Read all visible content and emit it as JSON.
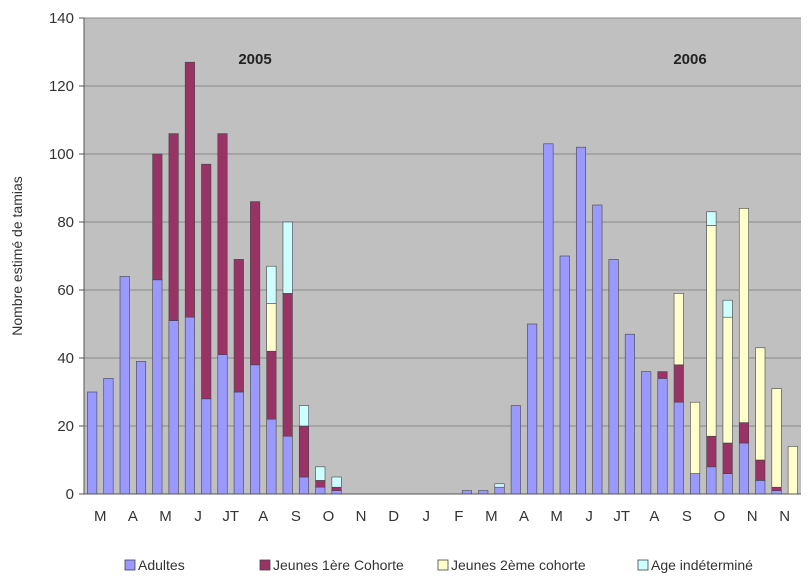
{
  "chart_data": {
    "type": "bar",
    "stacked": true,
    "ylabel": "Nombre estimé de tamias",
    "ylim": [
      0,
      140
    ],
    "yticks": [
      0,
      20,
      40,
      60,
      80,
      100,
      120,
      140
    ],
    "grid": true,
    "legend_position": "bottom",
    "plot_background": "#c0c0c0",
    "annotations": [
      "2005",
      "2006"
    ],
    "x_group_labels": [
      "M",
      "A",
      "M",
      "J",
      "JT",
      "A",
      "S",
      "O",
      "N",
      "D",
      "J",
      "F",
      "M",
      "A",
      "M",
      "J",
      "JT",
      "A",
      "S",
      "O",
      "N",
      "N"
    ],
    "series": [
      {
        "name": "Adultes",
        "color": "#9999ff",
        "values": [
          30,
          34,
          64,
          39,
          63,
          51,
          52,
          28,
          41,
          30,
          38,
          22,
          17,
          5,
          2,
          1,
          0,
          0,
          0,
          0,
          0,
          0,
          0,
          1,
          1,
          2,
          26,
          50,
          103,
          70,
          102,
          85,
          69,
          47,
          36,
          34,
          27,
          6,
          8,
          6,
          15,
          4,
          1,
          0
        ]
      },
      {
        "name": "Jeunes 1ère Cohorte",
        "color": "#993366",
        "values": [
          0,
          0,
          0,
          0,
          37,
          55,
          75,
          69,
          65,
          39,
          48,
          20,
          42,
          15,
          2,
          1,
          0,
          0,
          0,
          0,
          0,
          0,
          0,
          0,
          0,
          0,
          0,
          0,
          0,
          0,
          0,
          0,
          0,
          0,
          0,
          2,
          11,
          0,
          9,
          9,
          6,
          6,
          1,
          0
        ]
      },
      {
        "name": "Jeunes 2ème cohorte",
        "color": "#ffffcc",
        "values": [
          0,
          0,
          0,
          0,
          0,
          0,
          0,
          0,
          0,
          0,
          0,
          14,
          0,
          0,
          0,
          0,
          0,
          0,
          0,
          0,
          0,
          0,
          0,
          0,
          0,
          0,
          0,
          0,
          0,
          0,
          0,
          0,
          0,
          0,
          0,
          0,
          21,
          21,
          62,
          37,
          63,
          33,
          29,
          14
        ]
      },
      {
        "name": "Age indéterminé",
        "color": "#ccffff",
        "values": [
          0,
          0,
          0,
          0,
          0,
          0,
          0,
          0,
          0,
          0,
          0,
          11,
          21,
          6,
          4,
          3,
          0,
          0,
          0,
          0,
          0,
          0,
          0,
          0,
          0,
          1,
          0,
          0,
          0,
          0,
          0,
          0,
          0,
          0,
          0,
          0,
          0,
          0,
          4,
          5,
          0,
          0,
          0,
          0
        ]
      }
    ]
  }
}
